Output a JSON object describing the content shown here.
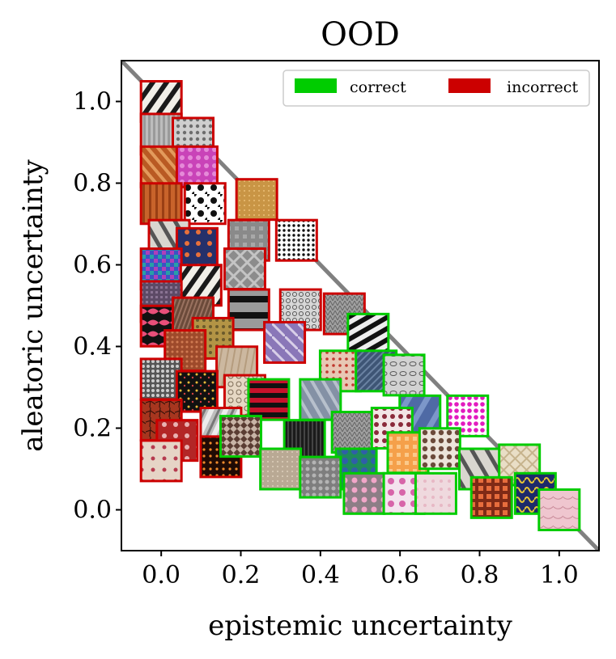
{
  "chart_data": {
    "type": "scatter",
    "title": "OOD",
    "xlabel": "epistemic uncertainty",
    "ylabel": "aleatoric uncertainty",
    "xlim": [
      -0.1,
      1.1
    ],
    "ylim": [
      -0.1,
      1.1
    ],
    "xticks": [
      "0.0",
      "0.2",
      "0.4",
      "0.6",
      "0.8",
      "1.0"
    ],
    "yticks": [
      "0.0",
      "0.2",
      "0.4",
      "0.6",
      "0.8",
      "1.0"
    ],
    "diagonal": "y = 1 - x",
    "legend": {
      "position": "top-right",
      "items": [
        {
          "label": "correct",
          "color": "#00cc00"
        },
        {
          "label": "incorrect",
          "color": "#cc0000"
        }
      ]
    },
    "series": [
      {
        "name": "incorrect",
        "color": "#cc0000",
        "points": [
          {
            "x": 0.0,
            "y": 1.0,
            "texture": "zebra"
          },
          {
            "x": 0.0,
            "y": 0.92,
            "texture": "gray-fabric"
          },
          {
            "x": 0.08,
            "y": 0.91,
            "texture": "gray-lace"
          },
          {
            "x": 0.0,
            "y": 0.84,
            "texture": "orange-weave"
          },
          {
            "x": 0.09,
            "y": 0.84,
            "texture": "pink"
          },
          {
            "x": 0.0,
            "y": 0.75,
            "texture": "orange-stripes"
          },
          {
            "x": 0.11,
            "y": 0.75,
            "texture": "bw-damask"
          },
          {
            "x": 0.24,
            "y": 0.76,
            "texture": "gold-cork"
          },
          {
            "x": 0.02,
            "y": 0.66,
            "texture": "zebra-light"
          },
          {
            "x": 0.09,
            "y": 0.64,
            "texture": "navy-dots"
          },
          {
            "x": 0.22,
            "y": 0.66,
            "texture": "gray-metal"
          },
          {
            "x": 0.34,
            "y": 0.66,
            "texture": "bw-dots"
          },
          {
            "x": 0.0,
            "y": 0.59,
            "texture": "multicolor"
          },
          {
            "x": 0.1,
            "y": 0.55,
            "texture": "zebra"
          },
          {
            "x": 0.21,
            "y": 0.59,
            "texture": "gray-mesh"
          },
          {
            "x": 0.0,
            "y": 0.51,
            "texture": "purple-weave"
          },
          {
            "x": 0.0,
            "y": 0.45,
            "texture": "swirl"
          },
          {
            "x": 0.08,
            "y": 0.47,
            "texture": "brown-weave"
          },
          {
            "x": 0.22,
            "y": 0.49,
            "texture": "black-band"
          },
          {
            "x": 0.35,
            "y": 0.49,
            "texture": "lace"
          },
          {
            "x": 0.46,
            "y": 0.48,
            "texture": "gray-knit"
          },
          {
            "x": 0.13,
            "y": 0.42,
            "texture": "gold-pattern"
          },
          {
            "x": 0.31,
            "y": 0.41,
            "texture": "purple-flower"
          },
          {
            "x": 0.06,
            "y": 0.39,
            "texture": "rust"
          },
          {
            "x": 0.0,
            "y": 0.32,
            "texture": "silver-sequins"
          },
          {
            "x": 0.19,
            "y": 0.35,
            "texture": "beige-wood"
          },
          {
            "x": 0.09,
            "y": 0.29,
            "texture": "black-confetti"
          },
          {
            "x": 0.21,
            "y": 0.28,
            "texture": "lace-beige"
          },
          {
            "x": 0.0,
            "y": 0.22,
            "texture": "cracked-red"
          },
          {
            "x": 0.04,
            "y": 0.17,
            "texture": "red-floral"
          },
          {
            "x": 0.15,
            "y": 0.2,
            "texture": "foil"
          },
          {
            "x": 0.15,
            "y": 0.13,
            "texture": "orange-sparks"
          },
          {
            "x": 0.0,
            "y": 0.12,
            "texture": "orchid"
          }
        ]
      },
      {
        "name": "correct",
        "color": "#00cc00",
        "points": [
          {
            "x": 0.52,
            "y": 0.43,
            "texture": "zebra-dark"
          },
          {
            "x": 0.45,
            "y": 0.34,
            "texture": "red-specks"
          },
          {
            "x": 0.54,
            "y": 0.34,
            "texture": "denim"
          },
          {
            "x": 0.61,
            "y": 0.33,
            "texture": "paisley"
          },
          {
            "x": 0.27,
            "y": 0.27,
            "texture": "red-black-stripes"
          },
          {
            "x": 0.4,
            "y": 0.27,
            "texture": "gray-blue"
          },
          {
            "x": 0.65,
            "y": 0.23,
            "texture": "blue-silk"
          },
          {
            "x": 0.77,
            "y": 0.23,
            "texture": "pink-dots"
          },
          {
            "x": 0.48,
            "y": 0.19,
            "texture": "gray-knit"
          },
          {
            "x": 0.58,
            "y": 0.2,
            "texture": "maroon-dots"
          },
          {
            "x": 0.2,
            "y": 0.18,
            "texture": "woven-strips"
          },
          {
            "x": 0.36,
            "y": 0.17,
            "texture": "black-knit"
          },
          {
            "x": 0.62,
            "y": 0.14,
            "texture": "orange-tiles"
          },
          {
            "x": 0.7,
            "y": 0.15,
            "texture": "brown-dots"
          },
          {
            "x": 0.49,
            "y": 0.1,
            "texture": "blue-green"
          },
          {
            "x": 0.3,
            "y": 0.1,
            "texture": "beige-sand"
          },
          {
            "x": 0.4,
            "y": 0.08,
            "texture": "gray-pebbles"
          },
          {
            "x": 0.8,
            "y": 0.1,
            "texture": "zebra-light"
          },
          {
            "x": 0.9,
            "y": 0.11,
            "texture": "cream-lattice"
          },
          {
            "x": 0.51,
            "y": 0.04,
            "texture": "pink-floral"
          },
          {
            "x": 0.61,
            "y": 0.04,
            "texture": "orchid-pink"
          },
          {
            "x": 0.69,
            "y": 0.04,
            "texture": "pale-pink"
          },
          {
            "x": 0.83,
            "y": 0.03,
            "texture": "orange-gems"
          },
          {
            "x": 0.94,
            "y": 0.04,
            "texture": "psychedelic"
          },
          {
            "x": 1.0,
            "y": 0.0,
            "texture": "pink-marble"
          }
        ]
      }
    ]
  }
}
